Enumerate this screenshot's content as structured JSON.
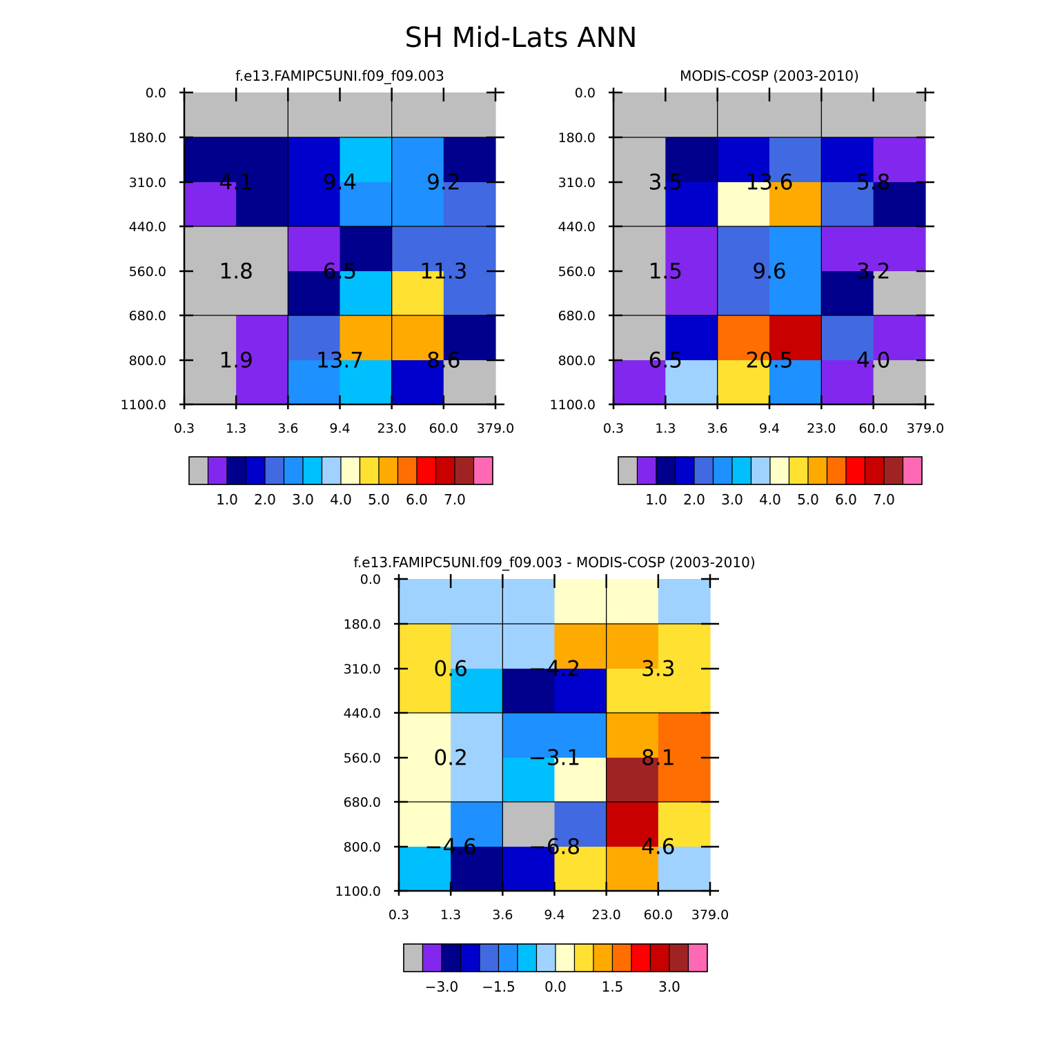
{
  "figure": {
    "title": "SH Mid-Lats ANN"
  },
  "palette": [
    "#BEBEBE",
    "#8228EE",
    "#00008C",
    "#0000CD",
    "#4169E1",
    "#1E90FF",
    "#00BFFF",
    "#A0D2FF",
    "#FFFFC8",
    "#FFE132",
    "#FFAA00",
    "#FF6E00",
    "#FF0000",
    "#C80000",
    "#A02323",
    "#FF69B4"
  ],
  "chart_data": [
    {
      "type": "heatmap",
      "title": "f.e13.FAMIPC5UNI.f09_f09.003",
      "x_tick_labels": [
        "0.3",
        "1.3",
        "3.6",
        "9.4",
        "23.0",
        "60.0",
        "379.0"
      ],
      "y_tick_labels": [
        "0.0",
        "180.0",
        "310.0",
        "440.0",
        "560.0",
        "680.0",
        "800.0",
        "1100.0"
      ],
      "cell_color_index": [
        [
          0,
          0,
          0,
          0,
          0,
          0
        ],
        [
          2,
          2,
          3,
          6,
          5,
          2
        ],
        [
          1,
          2,
          3,
          5,
          5,
          4
        ],
        [
          0,
          0,
          1,
          2,
          4,
          4
        ],
        [
          0,
          0,
          2,
          6,
          9,
          4
        ],
        [
          0,
          1,
          4,
          10,
          10,
          2
        ],
        [
          0,
          1,
          5,
          6,
          3,
          0
        ]
      ],
      "group_labels": [
        [
          "4.1",
          "9.4",
          "9.2"
        ],
        [
          "1.8",
          "6.5",
          "11.3"
        ],
        [
          "1.9",
          "13.7",
          "8.6"
        ]
      ],
      "colorbar": {
        "levels": [
          0.5,
          1.0,
          1.5,
          2.0,
          2.5,
          3.0,
          3.5,
          4.0,
          4.5,
          5.0,
          5.5,
          6.0,
          6.5,
          7.0,
          7.5
        ],
        "labels": [
          "1.0",
          "2.0",
          "3.0",
          "4.0",
          "5.0",
          "6.0",
          "7.0"
        ]
      }
    },
    {
      "type": "heatmap",
      "title": "MODIS-COSP (2003-2010)",
      "x_tick_labels": [
        "0.3",
        "1.3",
        "3.6",
        "9.4",
        "23.0",
        "60.0",
        "379.0"
      ],
      "y_tick_labels": [
        "0.0",
        "180.0",
        "310.0",
        "440.0",
        "560.0",
        "680.0",
        "800.0",
        "1100.0"
      ],
      "cell_color_index": [
        [
          0,
          0,
          0,
          0,
          0,
          0
        ],
        [
          0,
          2,
          3,
          4,
          3,
          1
        ],
        [
          0,
          3,
          8,
          10,
          4,
          2
        ],
        [
          0,
          1,
          4,
          5,
          1,
          1
        ],
        [
          0,
          1,
          4,
          5,
          2,
          0
        ],
        [
          0,
          3,
          11,
          13,
          4,
          1
        ],
        [
          1,
          7,
          9,
          5,
          1,
          0
        ]
      ],
      "group_labels": [
        [
          "3.5",
          "13.6",
          "5.8"
        ],
        [
          "1.5",
          "9.6",
          "3.2"
        ],
        [
          "6.5",
          "20.5",
          "4.0"
        ]
      ],
      "colorbar": {
        "levels": [
          0.5,
          1.0,
          1.5,
          2.0,
          2.5,
          3.0,
          3.5,
          4.0,
          4.5,
          5.0,
          5.5,
          6.0,
          6.5,
          7.0,
          7.5
        ],
        "labels": [
          "1.0",
          "2.0",
          "3.0",
          "4.0",
          "5.0",
          "6.0",
          "7.0"
        ]
      }
    },
    {
      "type": "heatmap",
      "title": "f.e13.FAMIPC5UNI.f09_f09.003 - MODIS-COSP (2003-2010)",
      "x_tick_labels": [
        "0.3",
        "1.3",
        "3.6",
        "9.4",
        "23.0",
        "60.0",
        "379.0"
      ],
      "y_tick_labels": [
        "0.0",
        "180.0",
        "310.0",
        "440.0",
        "560.0",
        "680.0",
        "800.0",
        "1100.0"
      ],
      "cell_color_index": [
        [
          7,
          7,
          7,
          8,
          8,
          7
        ],
        [
          9,
          7,
          7,
          10,
          10,
          9
        ],
        [
          9,
          6,
          2,
          3,
          9,
          9
        ],
        [
          8,
          7,
          5,
          5,
          10,
          11
        ],
        [
          8,
          7,
          6,
          8,
          14,
          11
        ],
        [
          8,
          5,
          0,
          4,
          13,
          9
        ],
        [
          6,
          2,
          3,
          9,
          10,
          7
        ]
      ],
      "group_labels": [
        [
          "0.6",
          "−4.2",
          "3.3"
        ],
        [
          "0.2",
          "−3.1",
          "8.1"
        ],
        [
          "−4.6",
          "−6.8",
          "4.6"
        ]
      ],
      "colorbar": {
        "levels": [
          -3.5,
          -3.0,
          -2.5,
          -2.0,
          -1.5,
          -1.0,
          -0.5,
          0.0,
          0.5,
          1.0,
          1.5,
          2.0,
          2.5,
          3.0,
          3.5
        ],
        "labels": [
          "−3.0",
          "−1.5",
          "0.0",
          "1.5",
          "3.0"
        ]
      }
    }
  ]
}
